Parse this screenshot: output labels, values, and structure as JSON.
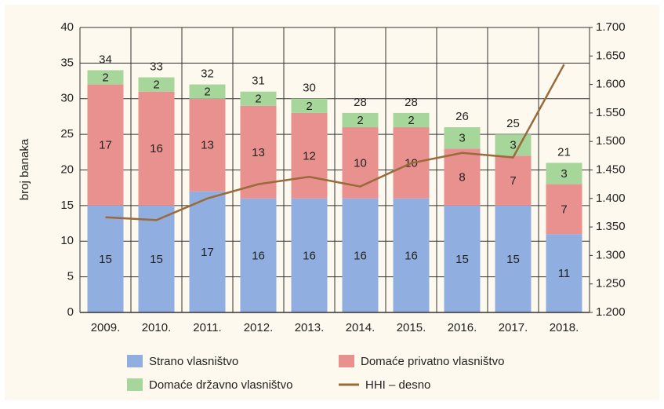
{
  "chart_data": {
    "type": "bar",
    "stacked": true,
    "y_label": "broj banaka",
    "categories": [
      "2009.",
      "2010.",
      "2011.",
      "2012.",
      "2013.",
      "2014.",
      "2015.",
      "2016.",
      "2017.",
      "2018."
    ],
    "series": [
      {
        "name": "Strano vlasništvo",
        "color": "#91aee0",
        "values": [
          15,
          15,
          17,
          16,
          16,
          16,
          16,
          15,
          15,
          11
        ]
      },
      {
        "name": "Domaće privatno vlasništvo",
        "color": "#e9918f",
        "values": [
          17,
          16,
          13,
          13,
          12,
          10,
          10,
          8,
          7,
          7
        ]
      },
      {
        "name": "Domaće državno vlasništvo",
        "color": "#a7d69b",
        "values": [
          2,
          2,
          2,
          2,
          2,
          2,
          2,
          3,
          3,
          3
        ]
      },
      {
        "name": "HHI – desno",
        "color": "#9b6a3a",
        "type": "line",
        "axis": "y2",
        "values": [
          1367,
          1362,
          1400,
          1425,
          1438,
          1421,
          1462,
          1480,
          1472,
          1635
        ]
      }
    ],
    "totals": [
      34,
      33,
      32,
      31,
      30,
      28,
      28,
      26,
      25,
      21
    ],
    "ylim": [
      0,
      40
    ],
    "yticks": [
      0,
      5,
      10,
      15,
      20,
      25,
      30,
      35,
      40
    ],
    "y2lim": [
      1200,
      1700
    ],
    "y2ticks": [
      {
        "value": 1200,
        "label": "1.200"
      },
      {
        "value": 1250,
        "label": "1.250"
      },
      {
        "value": 1300,
        "label": "1.300"
      },
      {
        "value": 1350,
        "label": "1.350"
      },
      {
        "value": 1400,
        "label": "1.400"
      },
      {
        "value": 1450,
        "label": "1.450"
      },
      {
        "value": 1500,
        "label": "1.500"
      },
      {
        "value": 1550,
        "label": "1.550"
      },
      {
        "value": 1600,
        "label": "1.600"
      },
      {
        "value": 1650,
        "label": "1.650"
      },
      {
        "value": 1700,
        "label": "1.700"
      }
    ],
    "grid": true
  }
}
